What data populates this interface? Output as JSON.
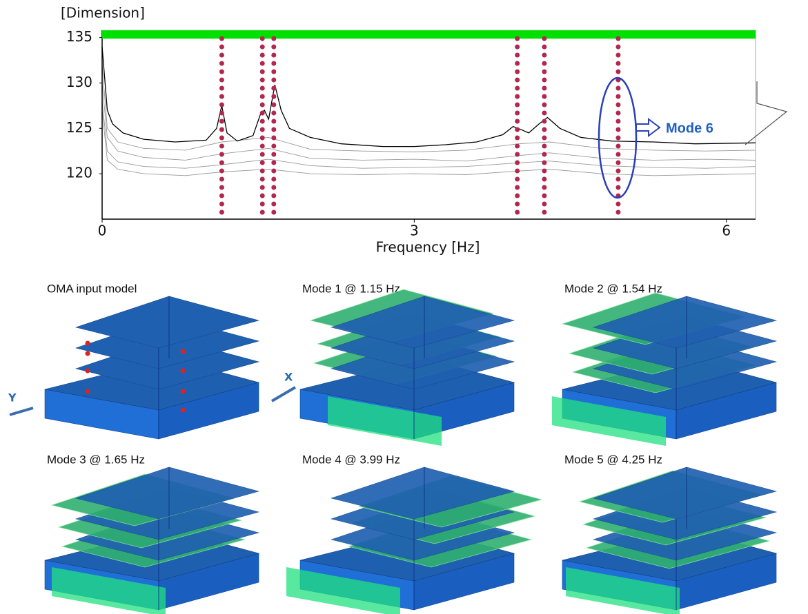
{
  "chart_data": {
    "type": "line",
    "y_title": "[Dimension]",
    "x_title": "Frequency [Hz]",
    "xlim": [
      0,
      6.28
    ],
    "xticks": [
      0,
      3,
      6
    ],
    "ylim": [
      115,
      135.8
    ],
    "yticks": [
      120,
      125,
      130,
      135
    ],
    "series": [
      {
        "color": "#999999",
        "x": [
          0,
          0.05,
          0.15,
          0.4,
          0.8,
          1.15,
          1.6,
          2.0,
          2.5,
          3.0,
          3.5,
          4.0,
          4.3,
          4.8,
          5.3,
          5.8,
          6.28
        ],
        "values": [
          127,
          121.5,
          120.5,
          120,
          119.8,
          120.2,
          120.5,
          120,
          119.9,
          120,
          119.9,
          120.3,
          120.5,
          120,
          119.8,
          119.9,
          120
        ]
      },
      {
        "color": "#999999",
        "x": [
          0,
          0.05,
          0.15,
          0.4,
          0.8,
          1.15,
          1.6,
          2.0,
          2.5,
          3.0,
          3.5,
          4.0,
          4.3,
          4.8,
          5.3,
          5.8,
          6.28
        ],
        "values": [
          128,
          122.5,
          121.3,
          120.8,
          120.6,
          121,
          121.6,
          120.9,
          120.6,
          120.7,
          120.8,
          121.2,
          121.4,
          120.9,
          120.7,
          120.6,
          120.8
        ]
      },
      {
        "color": "#999999",
        "x": [
          0,
          0.05,
          0.15,
          0.4,
          0.8,
          1.15,
          1.6,
          2.0,
          2.5,
          3.0,
          3.5,
          4.0,
          4.3,
          4.8,
          5.3,
          5.8,
          6.28
        ],
        "values": [
          130,
          124,
          122.5,
          121.8,
          121.5,
          122.2,
          122.8,
          121.7,
          121.5,
          121.6,
          121.4,
          122,
          122.3,
          121.7,
          121.5,
          121.6,
          121.5
        ]
      },
      {
        "color": "#999999",
        "x": [
          0,
          0.05,
          0.15,
          0.4,
          0.8,
          1.15,
          1.6,
          2.0,
          2.5,
          3.0,
          3.5,
          4.0,
          4.3,
          4.8,
          5.3,
          5.8,
          6.28
        ],
        "values": [
          132,
          125,
          123.5,
          122.8,
          122.6,
          123.5,
          124,
          122.7,
          122.5,
          122.4,
          122.6,
          123.3,
          123.5,
          122.8,
          122.6,
          122.5,
          122.6
        ]
      },
      {
        "color": "#000000",
        "x": [
          0,
          0.05,
          0.1,
          0.2,
          0.4,
          0.7,
          1.0,
          1.1,
          1.15,
          1.2,
          1.3,
          1.45,
          1.52,
          1.56,
          1.6,
          1.66,
          1.72,
          1.8,
          2.0,
          2.3,
          2.7,
          3.0,
          3.3,
          3.6,
          3.85,
          3.95,
          4.0,
          4.1,
          4.2,
          4.28,
          4.4,
          4.6,
          4.9,
          5.3,
          5.7,
          6.28
        ],
        "values": [
          134,
          127,
          125.5,
          124.5,
          123.8,
          123.5,
          123.7,
          125,
          127.5,
          124.5,
          123.6,
          124.2,
          126.5,
          127,
          126,
          129.8,
          127,
          125,
          124,
          123.3,
          123,
          123,
          123.2,
          123.5,
          124.3,
          125.2,
          125,
          124.5,
          125.5,
          126.2,
          125,
          124,
          123.6,
          123.5,
          123.3,
          123.4
        ]
      }
    ],
    "mode_lines": {
      "color": "#b0284f",
      "x": [
        1.15,
        1.54,
        1.65,
        3.99,
        4.25,
        4.96
      ]
    },
    "annotation": "Mode 6"
  },
  "model_panels": {
    "titles": [
      "OMA input model",
      "Mode 1 @ 1.15 Hz",
      "Mode 2 @ 1.54 Hz",
      "Mode 3 @ 1.65 Hz",
      "Mode 4 @ 3.99 Hz",
      "Mode 5 @ 4.25 Hz"
    ],
    "axis_labels": {
      "x": "X",
      "y": "Y"
    }
  }
}
